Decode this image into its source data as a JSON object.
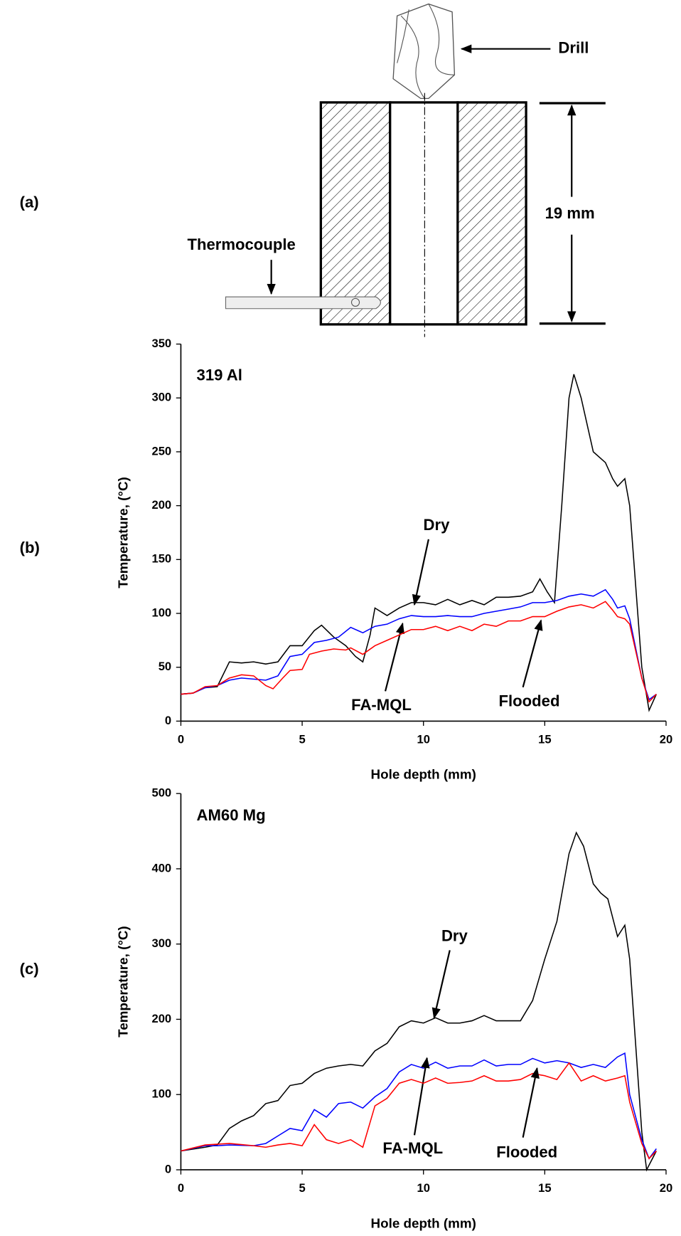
{
  "figure": {
    "panel_a": {
      "label": "(a)",
      "drill": "Drill",
      "depth": "19 mm",
      "thermocouple": "Thermocouple"
    }
  },
  "chart_data": [
    {
      "type": "line",
      "panel": "(b)",
      "label": "319 Al",
      "x_label": "Hole depth (mm)",
      "y_label": "Temperature, (°C)",
      "xlim": [
        0,
        20
      ],
      "xticks": [
        0,
        5,
        10,
        15,
        20
      ],
      "ylim": [
        0,
        350
      ],
      "yticks": [
        0,
        50,
        100,
        150,
        200,
        250,
        300,
        350
      ],
      "series": [
        {
          "name": "Dry",
          "color": "#000000",
          "x": [
            0,
            0.5,
            1,
            1.5,
            2,
            2.5,
            3,
            3.5,
            4,
            4.5,
            5,
            5.5,
            5.8,
            6.3,
            6.8,
            7.2,
            7.5,
            7.8,
            8,
            8.5,
            9,
            9.5,
            10,
            10.5,
            11,
            11.5,
            12,
            12.5,
            13,
            13.5,
            14,
            14.5,
            14.8,
            15.1,
            15.4,
            15.7,
            16,
            16.2,
            16.5,
            17,
            17.5,
            17.8,
            18,
            18.3,
            18.5,
            19,
            19.3,
            19.6
          ],
          "values": [
            25,
            26,
            31,
            32,
            55,
            54,
            55,
            53,
            55,
            70,
            70,
            84,
            89,
            78,
            70,
            60,
            55,
            80,
            105,
            98,
            105,
            110,
            110,
            108,
            113,
            108,
            112,
            108,
            115,
            115,
            116,
            120,
            132,
            120,
            110,
            200,
            300,
            322,
            300,
            250,
            240,
            225,
            218,
            225,
            200,
            50,
            10,
            25
          ]
        },
        {
          "name": "FA-MQL",
          "color": "#0000ff",
          "x": [
            0,
            0.5,
            1,
            1.5,
            2,
            2.5,
            3,
            3.5,
            4,
            4.5,
            5,
            5.5,
            6,
            6.5,
            7,
            7.5,
            8,
            8.5,
            9,
            9.5,
            10,
            10.5,
            11,
            11.5,
            12,
            12.5,
            13,
            13.5,
            14,
            14.5,
            15,
            15.5,
            16,
            16.5,
            17,
            17.5,
            17.8,
            18,
            18.3,
            18.5,
            19,
            19.3,
            19.6
          ],
          "values": [
            25,
            26,
            31,
            33,
            38,
            40,
            39,
            38,
            42,
            60,
            62,
            73,
            75,
            78,
            87,
            82,
            88,
            90,
            95,
            98,
            97,
            97,
            98,
            97,
            97,
            100,
            102,
            104,
            106,
            110,
            110,
            112,
            116,
            118,
            116,
            122,
            113,
            105,
            107,
            95,
            40,
            20,
            25
          ]
        },
        {
          "name": "Flooded",
          "color": "#ff0000",
          "x": [
            0,
            0.5,
            1,
            1.5,
            2,
            2.5,
            3,
            3.5,
            3.8,
            4.2,
            4.5,
            5,
            5.3,
            5.8,
            6.3,
            6.8,
            7,
            7.5,
            8,
            8.5,
            9,
            9.5,
            10,
            10.5,
            11,
            11.5,
            12,
            12.5,
            13,
            13.5,
            14,
            14.5,
            15,
            15.5,
            16,
            16.5,
            17,
            17.5,
            17.8,
            18,
            18.3,
            18.5,
            19,
            19.3,
            19.6
          ],
          "values": [
            25,
            26,
            32,
            33,
            40,
            43,
            42,
            33,
            30,
            40,
            47,
            48,
            62,
            65,
            67,
            66,
            68,
            62,
            70,
            75,
            80,
            85,
            85,
            88,
            84,
            88,
            84,
            90,
            88,
            93,
            93,
            97,
            97,
            102,
            106,
            108,
            105,
            111,
            103,
            97,
            95,
            90,
            40,
            18,
            25
          ]
        }
      ]
    },
    {
      "type": "line",
      "panel": "(c)",
      "label": "AM60 Mg",
      "x_label": "Hole depth (mm)",
      "y_label": "Temperature, (°C)",
      "xlim": [
        0,
        20
      ],
      "xticks": [
        0,
        5,
        10,
        15,
        20
      ],
      "ylim": [
        0,
        500
      ],
      "yticks": [
        0,
        100,
        200,
        300,
        400,
        500
      ],
      "series": [
        {
          "name": "Dry",
          "color": "#000000",
          "x": [
            0,
            1,
            1.5,
            2,
            2.5,
            3,
            3.5,
            4,
            4.5,
            5,
            5.5,
            6,
            6.5,
            7,
            7.5,
            8,
            8.5,
            9,
            9.5,
            10,
            10.5,
            11,
            11.5,
            12,
            12.5,
            13,
            13.5,
            14,
            14.5,
            15,
            15.5,
            16,
            16.3,
            16.6,
            17,
            17.3,
            17.6,
            18,
            18.3,
            18.5,
            19,
            19.2,
            19.6
          ],
          "values": [
            25,
            30,
            33,
            55,
            65,
            72,
            88,
            92,
            112,
            115,
            128,
            135,
            138,
            140,
            138,
            158,
            168,
            190,
            198,
            195,
            202,
            195,
            195,
            198,
            205,
            198,
            198,
            198,
            225,
            280,
            330,
            420,
            448,
            430,
            380,
            368,
            360,
            310,
            325,
            280,
            50,
            0,
            25
          ]
        },
        {
          "name": "FA-MQL",
          "color": "#0000ff",
          "x": [
            0,
            1,
            1.5,
            2,
            3,
            3.5,
            4,
            4.5,
            5,
            5.5,
            6,
            6.5,
            7,
            7.5,
            8,
            8.5,
            9,
            9.5,
            10,
            10.5,
            11,
            11.5,
            12,
            12.5,
            13,
            13.5,
            14,
            14.5,
            15,
            15.5,
            16,
            16.5,
            17,
            17.5,
            18,
            18.3,
            18.5,
            19,
            19.3,
            19.6
          ],
          "values": [
            25,
            32,
            32,
            33,
            32,
            35,
            45,
            55,
            52,
            80,
            70,
            88,
            90,
            82,
            97,
            108,
            130,
            140,
            135,
            143,
            135,
            138,
            138,
            146,
            138,
            140,
            140,
            148,
            142,
            145,
            142,
            136,
            140,
            136,
            150,
            155,
            100,
            40,
            15,
            28
          ]
        },
        {
          "name": "Flooded",
          "color": "#ff0000",
          "x": [
            0,
            1,
            2,
            3,
            3.5,
            4,
            4.5,
            5,
            5.5,
            6,
            6.5,
            7,
            7.5,
            8,
            8.5,
            9,
            9.5,
            10,
            10.5,
            11,
            11.5,
            12,
            12.5,
            13,
            13.5,
            14,
            14.5,
            15,
            15.5,
            16,
            16.5,
            17,
            17.5,
            18,
            18.3,
            18.5,
            19,
            19.3,
            19.6
          ],
          "values": [
            25,
            33,
            35,
            32,
            30,
            33,
            35,
            32,
            60,
            40,
            35,
            40,
            30,
            85,
            95,
            115,
            120,
            115,
            122,
            115,
            116,
            118,
            125,
            118,
            118,
            120,
            128,
            125,
            120,
            142,
            118,
            125,
            118,
            122,
            125,
            90,
            35,
            15,
            25
          ]
        }
      ]
    }
  ]
}
